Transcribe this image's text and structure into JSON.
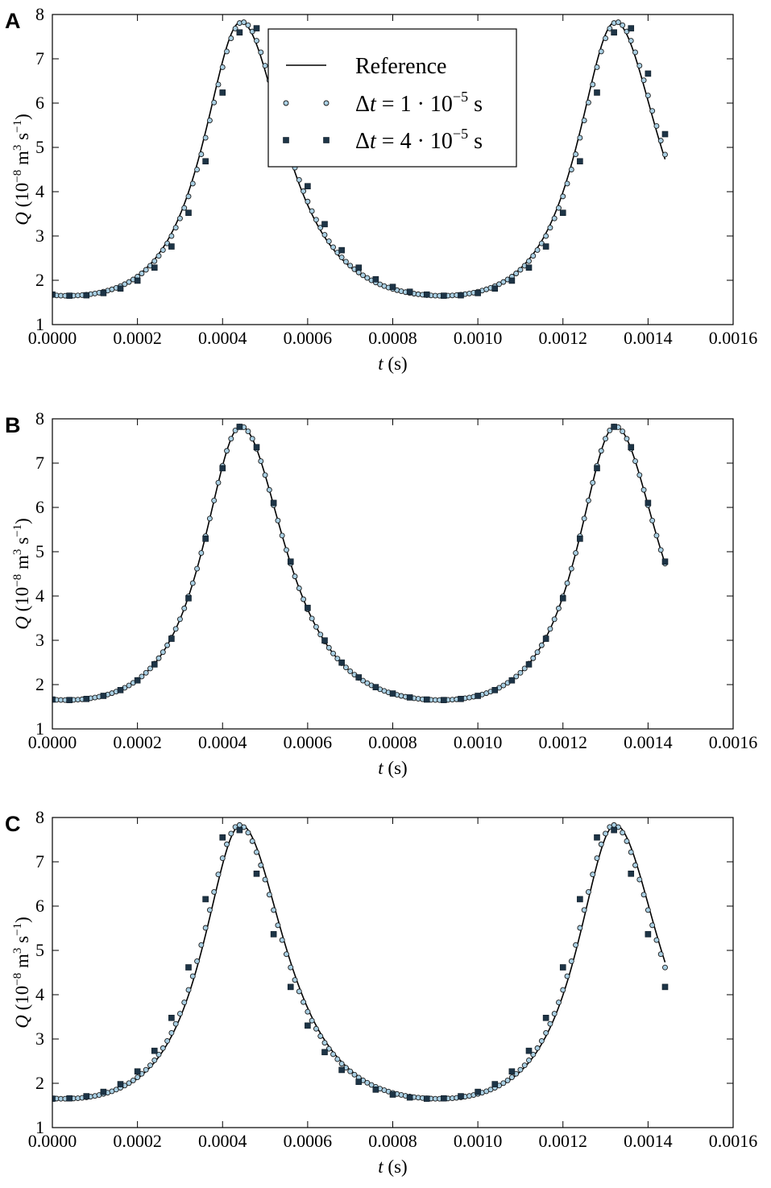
{
  "chart_data": [
    {
      "panel": "A",
      "type": "line",
      "xlabel": "t (s)",
      "ylabel": "Q (10⁻⁸ m³ s⁻¹)",
      "xlim": [
        0,
        0.0016
      ],
      "ylim": [
        1,
        8
      ],
      "xticks": [
        "0.0000",
        "0.0002",
        "0.0004",
        "0.0006",
        "0.0008",
        "0.0010",
        "0.0012",
        "0.0014",
        "0.0016"
      ],
      "yticks": [
        "1",
        "2",
        "3",
        "4",
        "5",
        "6",
        "7",
        "8"
      ],
      "legend": {
        "position": "top-center",
        "entries": [
          "Reference",
          "Δt = 1·10⁻⁵ s",
          "Δt = 4·10⁻⁵ s"
        ]
      },
      "series": [
        {
          "name": "Reference",
          "style": "line",
          "color": "#000000",
          "t_start": 0,
          "t_end": 0.00144,
          "dt": 1e-05,
          "peak_shift": 0.0,
          "amp": 1.0
        },
        {
          "name": "Δt = 1·10⁻⁵ s",
          "style": "circle",
          "color": "#a9cfe3",
          "t_start": 0,
          "t_end": 0.00144,
          "dt": 1e-05,
          "peak_shift": 3.5e-06,
          "amp": 1.0
        },
        {
          "name": "Δt = 4·10⁻⁵ s",
          "style": "square",
          "color": "#1d3446",
          "t_start": 0,
          "t_end": 0.00144,
          "dt": 4e-05,
          "peak_shift": 1.8e-05,
          "amp": 1.0
        }
      ]
    },
    {
      "panel": "B",
      "type": "line",
      "xlabel": "t (s)",
      "ylabel": "Q (10⁻⁸ m³ s⁻¹)",
      "xlim": [
        0,
        0.0016
      ],
      "ylim": [
        1,
        8
      ],
      "xticks": [
        "0.0000",
        "0.0002",
        "0.0004",
        "0.0006",
        "0.0008",
        "0.0010",
        "0.0012",
        "0.0014",
        "0.0016"
      ],
      "yticks": [
        "1",
        "2",
        "3",
        "4",
        "5",
        "6",
        "7",
        "8"
      ],
      "series": [
        {
          "name": "Reference",
          "style": "line",
          "color": "#000000",
          "t_start": 0,
          "t_end": 0.00144,
          "dt": 1e-05,
          "peak_shift": 0.0,
          "amp": 1.0
        },
        {
          "name": "Δt = 1·10⁻⁵ s",
          "style": "circle",
          "color": "#a9cfe3",
          "t_start": 0,
          "t_end": 0.00144,
          "dt": 1e-05,
          "peak_shift": 0.0,
          "amp": 1.0
        },
        {
          "name": "Δt = 4·10⁻⁵ s",
          "style": "square",
          "color": "#1d3446",
          "t_start": 0,
          "t_end": 0.00144,
          "dt": 4e-05,
          "peak_shift": 1.5e-06,
          "amp": 1.0
        }
      ]
    },
    {
      "panel": "C",
      "type": "line",
      "xlabel": "t (s)",
      "ylabel": "Q (10⁻⁸ m³ s⁻¹)",
      "xlim": [
        0,
        0.0016
      ],
      "ylim": [
        1,
        8
      ],
      "xticks": [
        "0.0000",
        "0.0002",
        "0.0004",
        "0.0006",
        "0.0008",
        "0.0010",
        "0.0012",
        "0.0014",
        "0.0016"
      ],
      "yticks": [
        "1",
        "2",
        "3",
        "4",
        "5",
        "6",
        "7",
        "8"
      ],
      "series": [
        {
          "name": "Reference",
          "style": "line",
          "color": "#000000",
          "t_start": 0,
          "t_end": 0.00144,
          "dt": 1e-05,
          "peak_shift": 0.0,
          "amp": 1.0
        },
        {
          "name": "Δt = 1·10⁻⁵ s",
          "style": "circle",
          "color": "#a9cfe3",
          "t_start": 0,
          "t_end": 0.00144,
          "dt": 1e-05,
          "peak_shift": -4e-06,
          "amp": 1.0
        },
        {
          "name": "Δt = 4·10⁻⁵ s",
          "style": "square",
          "color": "#1d3446",
          "t_start": 0,
          "t_end": 0.00144,
          "dt": 4e-05,
          "peak_shift": -2e-05,
          "amp": 1.0
        }
      ]
    }
  ],
  "signal": {
    "baseline": 1.66,
    "peak": 7.83,
    "period": 0.00088,
    "first_peak_t": 0.000443,
    "rise_width": 0.000115,
    "fall_width": 0.000135
  }
}
